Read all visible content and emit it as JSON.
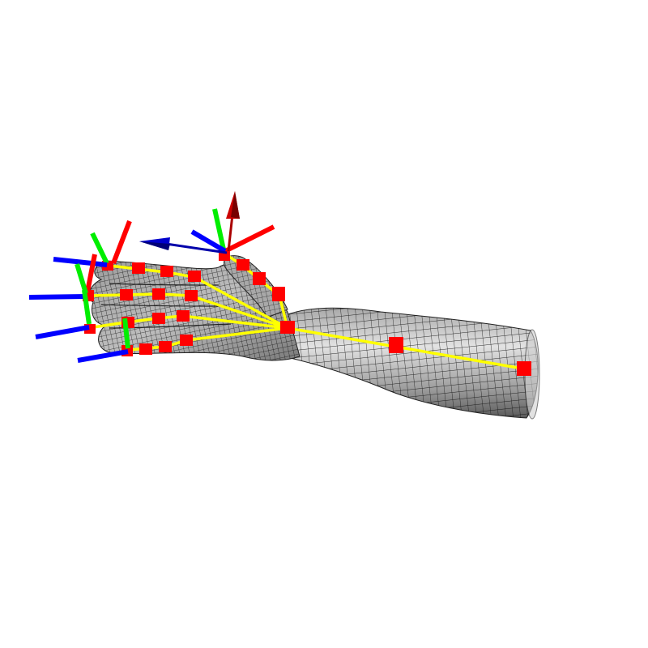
{
  "scene": {
    "background": "#ffffff",
    "mesh": {
      "fill_light": "#d6d6d6",
      "fill_dark": "#6a6a6a",
      "wire_color": "#111111"
    },
    "colors": {
      "skeleton": "#ffff00",
      "joint": "#ff0000",
      "axis_x": "#ff0000",
      "axis_y": "#00ee00",
      "axis_z": "#0000ff",
      "arrow_red": "#aa0000",
      "arrow_blue": "#0000aa"
    }
  }
}
